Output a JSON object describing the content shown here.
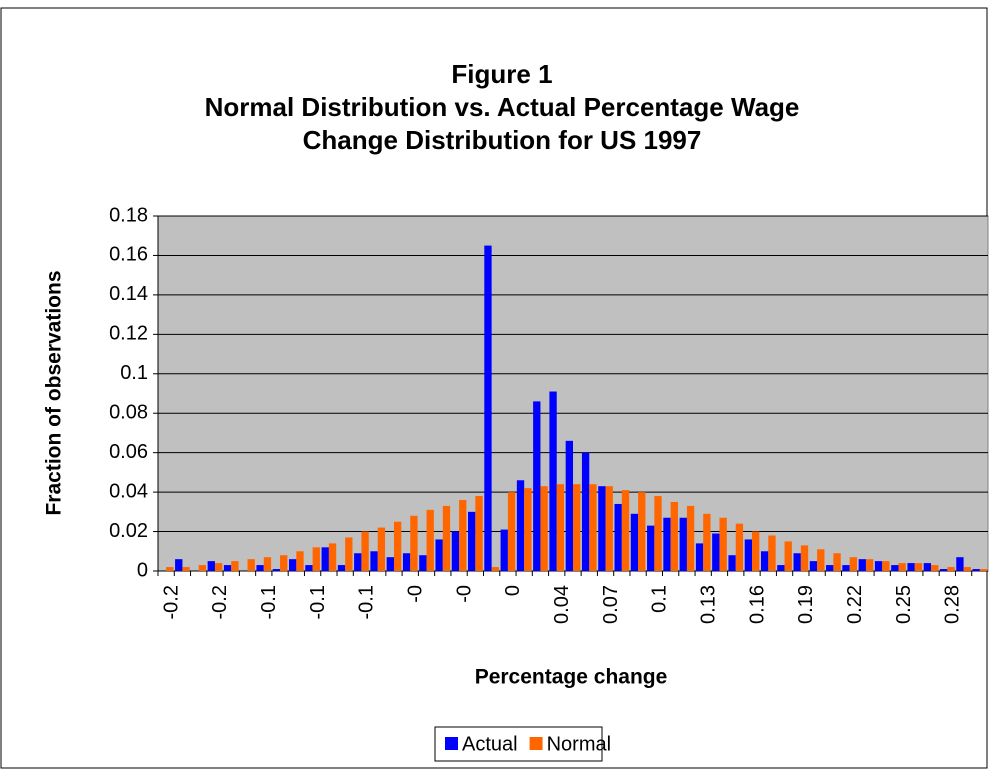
{
  "chart_data": {
    "type": "bar",
    "title": [
      "Figure 1",
      "Normal Distribution vs. Actual Percentage Wage",
      "Change Distribution for US 1997"
    ],
    "x_label": "Percentage change",
    "y_label": "Fraction of observations",
    "categories": [
      "-0.2",
      null,
      null,
      "-0.2",
      null,
      null,
      "-0.1",
      null,
      null,
      "-0.1",
      null,
      null,
      "-0.1",
      null,
      null,
      "-0",
      null,
      null,
      "-0",
      null,
      null,
      "0",
      null,
      null,
      "0.04",
      null,
      null,
      "0.07",
      null,
      null,
      "0.1",
      null,
      null,
      "0.13",
      null,
      null,
      "0.16",
      null,
      null,
      "0.19",
      null,
      null,
      "0.22",
      null,
      null,
      "0.25",
      null,
      null,
      "0.28",
      null,
      null
    ],
    "series": [
      {
        "name": "Actual",
        "color": "#0000ff",
        "values": [
          0,
          0.006,
          0,
          0.005,
          0.003,
          0,
          0.003,
          0.001,
          0.006,
          0.003,
          0.012,
          0.003,
          0.009,
          0.01,
          0.007,
          0.009,
          0.008,
          0.016,
          0.02,
          0.03,
          0.165,
          0.021,
          0.046,
          0.086,
          0.091,
          0.066,
          0.06,
          0.043,
          0.034,
          0.029,
          0.023,
          0.027,
          0.027,
          0.014,
          0.019,
          0.008,
          0.016,
          0.01,
          0.003,
          0.009,
          0.005,
          0.003,
          0.003,
          0.006,
          0.005,
          0.003,
          0.004,
          0.004,
          0.001,
          0.007,
          0.001
        ]
      },
      {
        "name": "Normal",
        "color": "#ff6600",
        "values": [
          0.002,
          0.002,
          0.003,
          0.004,
          0.005,
          0.006,
          0.007,
          0.008,
          0.01,
          0.012,
          0.014,
          0.017,
          0.02,
          0.022,
          0.025,
          0.028,
          0.031,
          0.033,
          0.036,
          0.038,
          0.002,
          0.04,
          0.042,
          0.043,
          0.044,
          0.044,
          0.044,
          0.043,
          0.041,
          0.04,
          0.038,
          0.035,
          0.033,
          0.029,
          0.027,
          0.024,
          0.02,
          0.018,
          0.015,
          0.013,
          0.011,
          0.009,
          0.007,
          0.006,
          0.005,
          0.004,
          0.004,
          0.003,
          0.002,
          0.002,
          0.001
        ]
      }
    ],
    "ylim": [
      0,
      0.18
    ],
    "yticks": [
      0,
      0.02,
      0.04,
      0.06,
      0.08,
      0.1,
      0.12,
      0.14,
      0.16,
      0.18
    ],
    "grid": true,
    "plot_background": "#c0c0c0",
    "legend": "bottom"
  }
}
